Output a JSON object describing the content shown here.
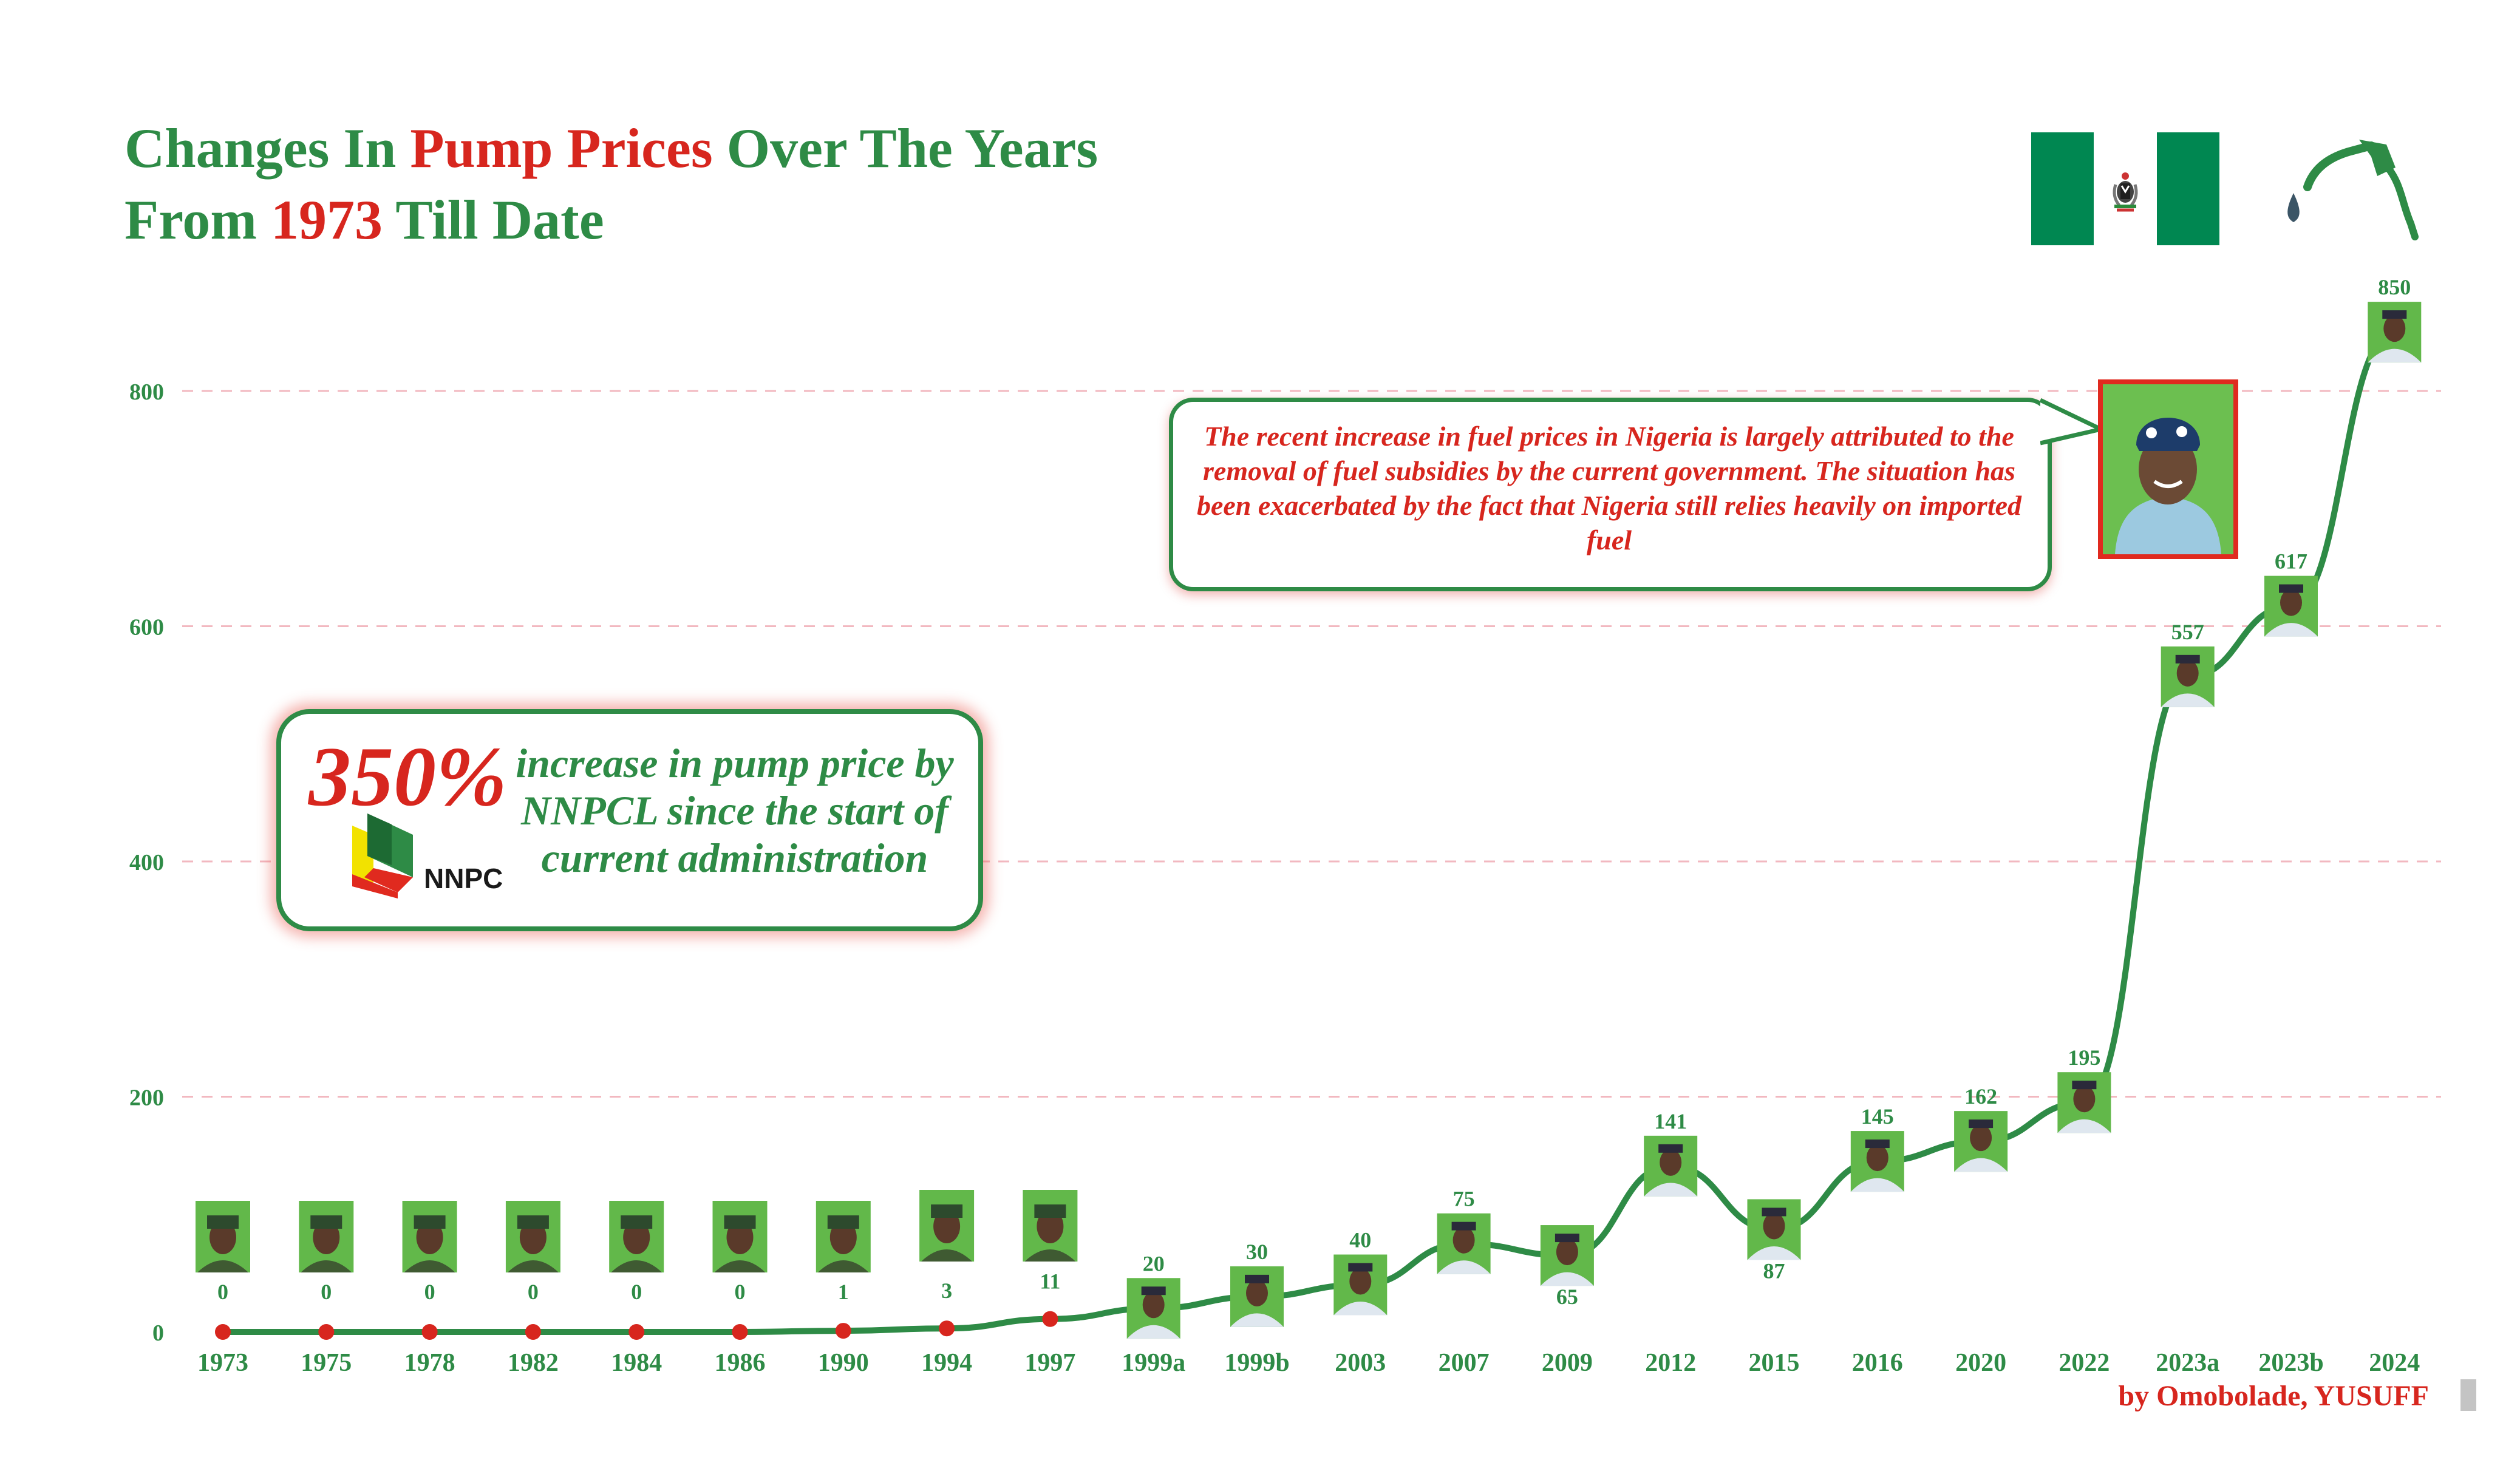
{
  "title": {
    "line1_part1": "Changes In ",
    "line1_part2": "Pump Prices",
    "line1_part3": " Over The Years",
    "line2_part1": "From ",
    "line2_part2": "1973",
    "line2_part3": " Till Date"
  },
  "callout": {
    "text": "The recent increase in fuel prices in Nigeria is largely attributed to the removal of fuel subsidies by the current government. The situation has been exacerbated by the fact that Nigeria still relies heavily on imported fuel"
  },
  "promo": {
    "percent": "350%",
    "text": "increase in pump price by NNPCL since the start of current administration",
    "logo_text": "NNPC"
  },
  "credit": "by Omobolade, YUSUFF",
  "colors": {
    "green": "#2e8b46",
    "red": "#d7261e",
    "grid": "#f2b8c0",
    "flag_green": "#008751"
  },
  "chart_data": {
    "type": "line",
    "categories": [
      "1973",
      "1975",
      "1978",
      "1982",
      "1984",
      "1986",
      "1990",
      "1994",
      "1997",
      "1999a",
      "1999b",
      "2003",
      "2007",
      "2009",
      "2012",
      "2015",
      "2016",
      "2020",
      "2022",
      "2023a",
      "2023b",
      "2024"
    ],
    "values": [
      0,
      0,
      0,
      0,
      0,
      0,
      1,
      3,
      11,
      20,
      30,
      40,
      75,
      65,
      141,
      87,
      145,
      162,
      195,
      557,
      617,
      850
    ],
    "ylim": [
      0,
      850
    ],
    "yticks": [
      0,
      200,
      400,
      600,
      800
    ],
    "grid": "horizontal dashed",
    "marker_style": "red dots for 1973-1997, portrait markers from 1999a onward"
  }
}
